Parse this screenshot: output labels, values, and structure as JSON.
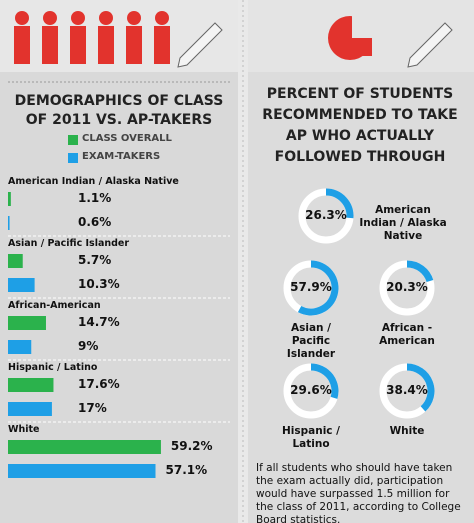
{
  "chart_data": [
    {
      "type": "bar",
      "title": "DEMOGRAPHICS OF CLASS OF 2011 VS. AP-TAKERS",
      "categories": [
        "American Indian / Alaska Native",
        "Asian / Pacific Islander",
        "African-American",
        "Hispanic / Latino",
        "White"
      ],
      "series": [
        {
          "name": "CLASS OVERALL",
          "color": "#2bb24c",
          "values": [
            1.1,
            5.7,
            14.7,
            17.6,
            59.2
          ],
          "value_labels": [
            "1.1%",
            "5.7%",
            "14.7%",
            "17.6%",
            "59.2%"
          ]
        },
        {
          "name": "EXAM-TAKERS",
          "color": "#1e9fe6",
          "values": [
            0.6,
            10.3,
            9,
            17,
            57.1
          ],
          "value_labels": [
            "0.6%",
            "10.3%",
            "9%",
            "17%",
            "57.1%"
          ]
        }
      ],
      "xlim": [
        0,
        60
      ]
    },
    {
      "type": "donut",
      "title": "PERCENT OF STUDENTS RECOMMENDED TO TAKE AP WHO ACTUALLY FOLLOWED THROUGH",
      "categories": [
        "American Indian / Alaska Native",
        "Asian / Pacific Islander",
        "African -American",
        "Hispanic / Latino",
        "White"
      ],
      "values": [
        26.3,
        57.9,
        20.3,
        29.6,
        38.4
      ],
      "value_labels": [
        "26.3%",
        "57.9%",
        "20.3%",
        "29.6%",
        "38.4%"
      ],
      "color": "#1e9fe6",
      "note": "If all students who should have taken the exam actually did, participation would have surpassed 1.5 million for the class of 2011, according to College Board statistics."
    }
  ]
}
